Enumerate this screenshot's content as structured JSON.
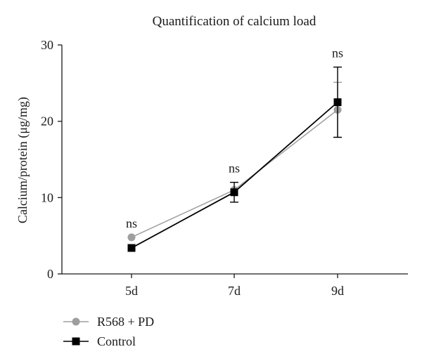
{
  "chart_data": {
    "type": "line",
    "title": "Quantification of calcium load",
    "xlabel": "",
    "ylabel": "Calcium/protein (μg/mg)",
    "categories": [
      "5d",
      "7d",
      "9d"
    ],
    "ylim": [
      0,
      30
    ],
    "yticks": [
      0,
      10,
      20,
      30
    ],
    "annotations": [
      "ns",
      "ns",
      "ns"
    ],
    "legend_position": "bottom-left",
    "grid": false,
    "series": [
      {
        "name": "R568 + PD",
        "values": [
          4.8,
          11.0,
          21.5
        ],
        "error": [
          null,
          null,
          3.6
        ],
        "color": "#9e9e9e",
        "marker": "circle"
      },
      {
        "name": "Control",
        "values": [
          3.4,
          10.7,
          22.5
        ],
        "error": [
          null,
          1.3,
          4.6
        ],
        "color": "#000000",
        "marker": "square"
      }
    ]
  }
}
